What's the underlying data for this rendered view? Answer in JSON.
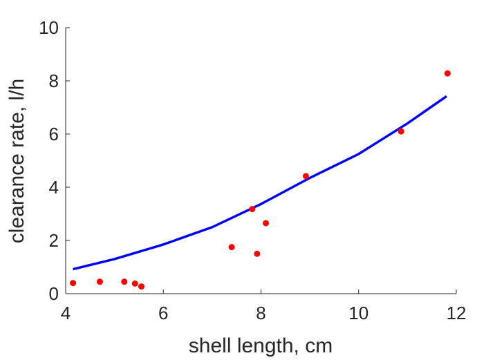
{
  "chart_data": {
    "type": "scatter",
    "xlabel": "shell length, cm",
    "ylabel": "clearance rate, l/h",
    "xlim": [
      4,
      12
    ],
    "ylim": [
      0,
      10
    ],
    "xticks": [
      4,
      6,
      8,
      10,
      12
    ],
    "yticks": [
      0,
      2,
      4,
      6,
      8,
      10
    ],
    "grid": false,
    "box": false,
    "series": [
      {
        "kind": "points",
        "color": "#ff0000",
        "points": [
          {
            "x": 4.15,
            "y": 0.4
          },
          {
            "x": 4.7,
            "y": 0.45
          },
          {
            "x": 5.2,
            "y": 0.45
          },
          {
            "x": 5.42,
            "y": 0.38
          },
          {
            "x": 5.55,
            "y": 0.27
          },
          {
            "x": 7.4,
            "y": 1.75
          },
          {
            "x": 7.82,
            "y": 3.18
          },
          {
            "x": 7.92,
            "y": 1.5
          },
          {
            "x": 8.1,
            "y": 2.65
          },
          {
            "x": 8.92,
            "y": 4.42
          },
          {
            "x": 10.87,
            "y": 6.1
          },
          {
            "x": 11.82,
            "y": 8.28
          }
        ]
      },
      {
        "kind": "fit-line",
        "color": "#0000ff",
        "x": [
          4.15,
          5.0,
          6.0,
          7.0,
          8.0,
          9.0,
          10.0,
          11.0,
          11.8
        ],
        "y": [
          0.92,
          1.3,
          1.85,
          2.5,
          3.37,
          4.35,
          5.25,
          6.4,
          7.42
        ]
      }
    ]
  }
}
